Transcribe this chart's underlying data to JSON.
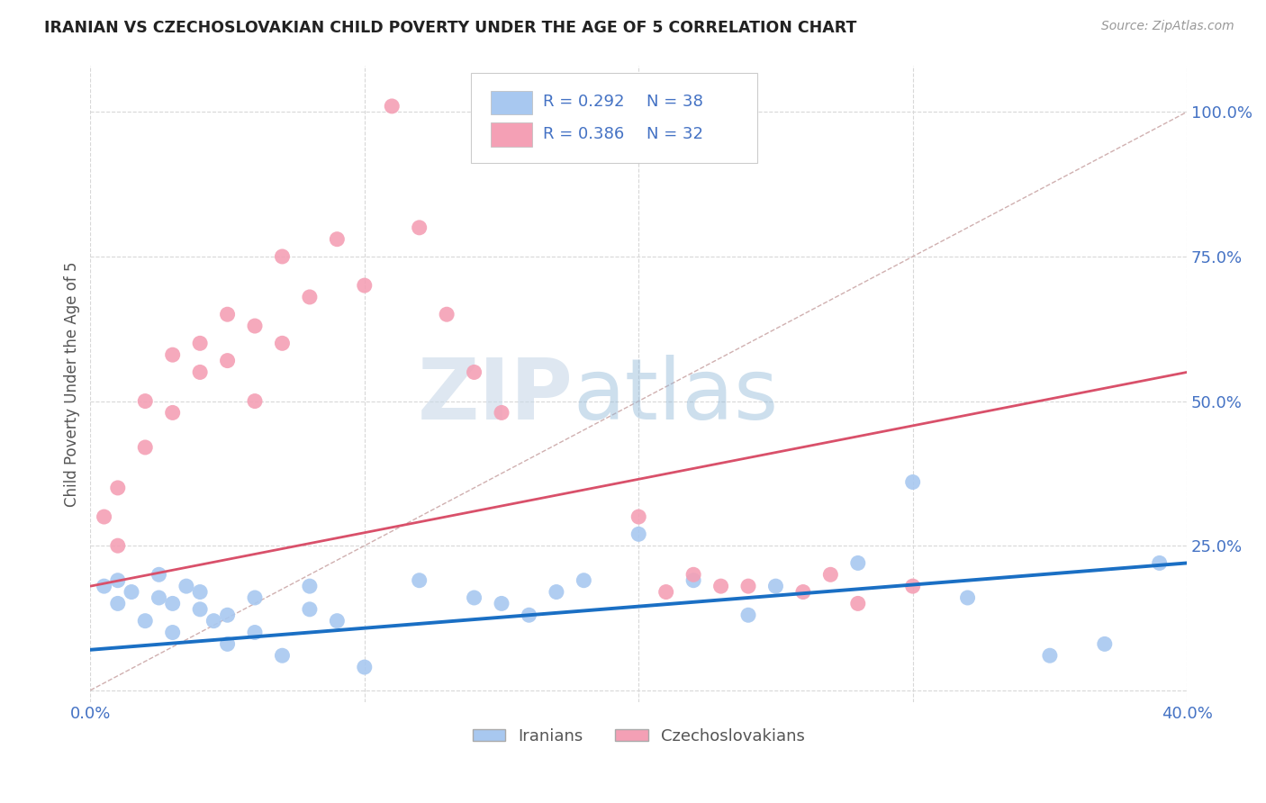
{
  "title": "IRANIAN VS CZECHOSLOVAKIAN CHILD POVERTY UNDER THE AGE OF 5 CORRELATION CHART",
  "source": "Source: ZipAtlas.com",
  "ylabel": "Child Poverty Under the Age of 5",
  "xlim": [
    0.0,
    0.4
  ],
  "ylim": [
    -0.02,
    1.08
  ],
  "xticks": [
    0.0,
    0.4
  ],
  "xtick_labels": [
    "0.0%",
    "40.0%"
  ],
  "yticks": [
    0.25,
    0.5,
    0.75,
    1.0
  ],
  "ytick_labels": [
    "25.0%",
    "50.0%",
    "75.0%",
    "100.0%"
  ],
  "hgrid_ticks": [
    0.0,
    0.25,
    0.5,
    0.75,
    1.0
  ],
  "vgrid_ticks": [
    0.0,
    0.1,
    0.2,
    0.3,
    0.4
  ],
  "legend_labels": [
    "Iranians",
    "Czechoslovakians"
  ],
  "legend_r_vals": [
    "R = 0.292",
    "R = 0.386"
  ],
  "legend_n_vals": [
    "N = 38",
    "N = 32"
  ],
  "dot_color_iranian": "#a8c8f0",
  "dot_color_czech": "#f4a0b5",
  "line_color_iranian": "#1a6fc4",
  "line_color_czech": "#d9506a",
  "ref_line_color": "#d0b0b0",
  "grid_color": "#d8d8d8",
  "title_color": "#222222",
  "axis_label_color": "#555555",
  "tick_color": "#4472c4",
  "legend_r_color": "#4472c4",
  "watermark_zip": "ZIP",
  "watermark_atlas": "atlas",
  "iranian_x": [
    0.005,
    0.01,
    0.01,
    0.015,
    0.02,
    0.025,
    0.025,
    0.03,
    0.03,
    0.035,
    0.04,
    0.04,
    0.045,
    0.05,
    0.05,
    0.06,
    0.06,
    0.07,
    0.08,
    0.08,
    0.09,
    0.1,
    0.12,
    0.14,
    0.15,
    0.16,
    0.17,
    0.18,
    0.2,
    0.22,
    0.24,
    0.25,
    0.28,
    0.3,
    0.32,
    0.35,
    0.37,
    0.39
  ],
  "iranian_y": [
    0.18,
    0.19,
    0.15,
    0.17,
    0.12,
    0.2,
    0.16,
    0.15,
    0.1,
    0.18,
    0.17,
    0.14,
    0.12,
    0.13,
    0.08,
    0.1,
    0.16,
    0.06,
    0.14,
    0.18,
    0.12,
    0.04,
    0.19,
    0.16,
    0.15,
    0.13,
    0.17,
    0.19,
    0.27,
    0.19,
    0.13,
    0.18,
    0.22,
    0.36,
    0.16,
    0.06,
    0.08,
    0.22
  ],
  "czech_x": [
    0.005,
    0.01,
    0.01,
    0.02,
    0.02,
    0.03,
    0.03,
    0.04,
    0.04,
    0.05,
    0.05,
    0.06,
    0.06,
    0.07,
    0.07,
    0.08,
    0.09,
    0.1,
    0.11,
    0.12,
    0.13,
    0.14,
    0.15,
    0.2,
    0.21,
    0.22,
    0.23,
    0.24,
    0.26,
    0.27,
    0.28,
    0.3
  ],
  "czech_y": [
    0.3,
    0.35,
    0.25,
    0.42,
    0.5,
    0.48,
    0.58,
    0.6,
    0.55,
    0.65,
    0.57,
    0.63,
    0.5,
    0.6,
    0.75,
    0.68,
    0.78,
    0.7,
    1.01,
    0.8,
    0.65,
    0.55,
    0.48,
    0.3,
    0.17,
    0.2,
    0.18,
    0.18,
    0.17,
    0.2,
    0.15,
    0.18
  ],
  "iranian_trend_x": [
    0.0,
    0.4
  ],
  "iranian_trend_y": [
    0.07,
    0.22
  ],
  "czech_trend_x": [
    0.0,
    0.4
  ],
  "czech_trend_y": [
    0.18,
    0.55
  ]
}
